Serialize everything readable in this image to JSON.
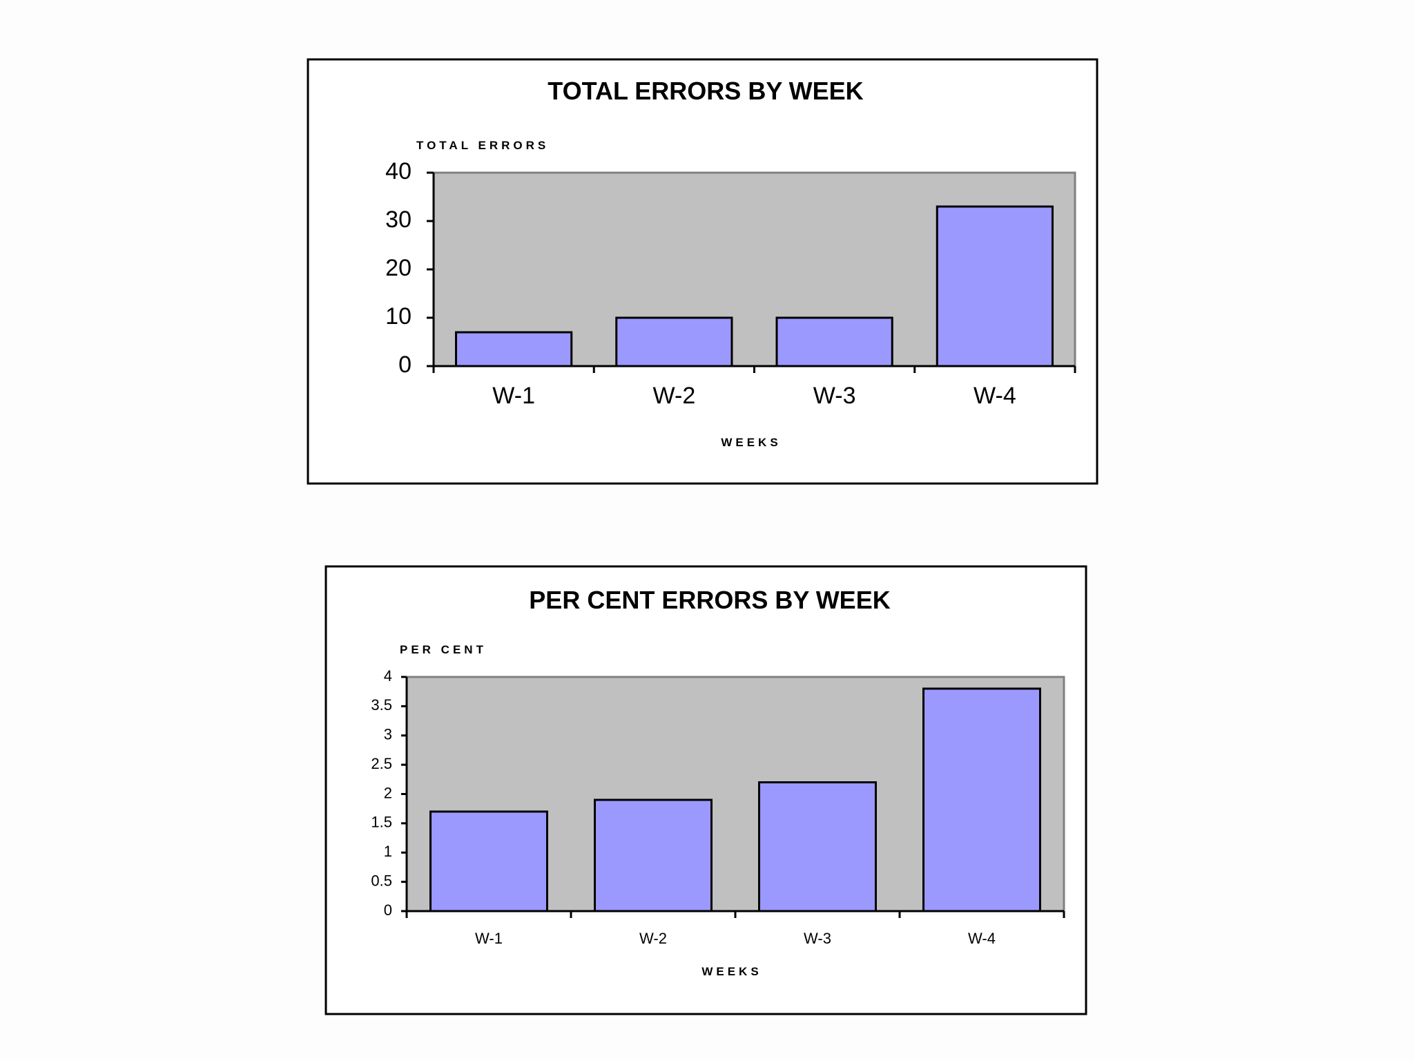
{
  "colors": {
    "bar_fill": "#9b99fe",
    "plot_background": "#c0c0c0",
    "frame": "#000000"
  },
  "chart_data": [
    {
      "type": "bar",
      "title": "TOTAL ERRORS BY WEEK",
      "ylabel": "TOTAL ERRORS",
      "xlabel": "WEEKS",
      "categories": [
        "W-1",
        "W-2",
        "W-3",
        "W-4"
      ],
      "values": [
        7,
        10,
        10,
        33
      ],
      "ylim": [
        0,
        40
      ],
      "yticks": [
        "0",
        "10",
        "20",
        "30",
        "40"
      ],
      "grid": false,
      "legend": "none"
    },
    {
      "type": "bar",
      "title": "PER CENT ERRORS BY WEEK",
      "ylabel": "PER CENT",
      "xlabel": "WEEKS",
      "categories": [
        "W-1",
        "W-2",
        "W-3",
        "W-4"
      ],
      "values": [
        1.7,
        1.9,
        2.2,
        3.8
      ],
      "ylim": [
        0,
        4
      ],
      "yticks": [
        "0",
        "0.5",
        "1",
        "1.5",
        "2",
        "2.5",
        "3",
        "3.5",
        "4"
      ],
      "grid": false,
      "legend": "none"
    }
  ]
}
